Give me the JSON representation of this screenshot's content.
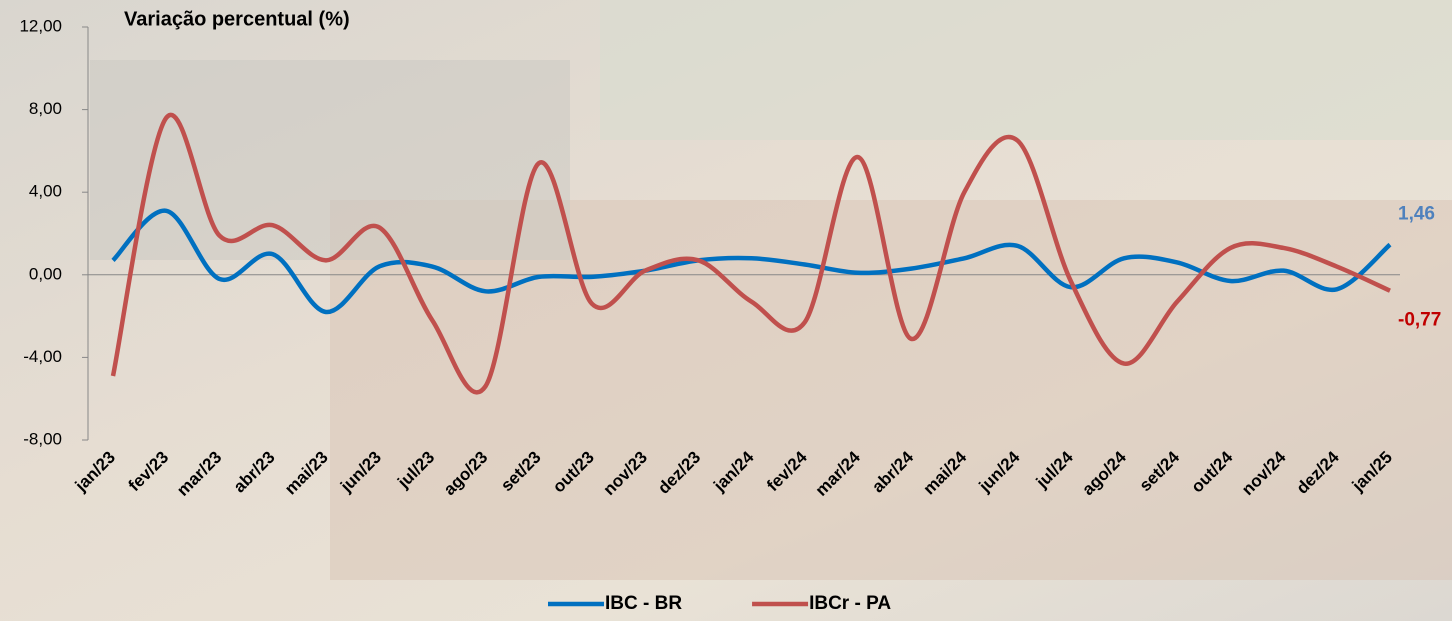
{
  "chart_data": {
    "type": "line",
    "title": "Variação percentual (%)",
    "categories": [
      "jan/23",
      "fev/23",
      "mar/23",
      "abr/23",
      "mai/23",
      "jun/23",
      "jul/23",
      "ago/23",
      "set/23",
      "out/23",
      "nov/23",
      "dez/23",
      "jan/24",
      "fev/24",
      "mar/24",
      "abr/24",
      "mai/24",
      "jun/24",
      "jul/24",
      "ago/24",
      "set/24",
      "out/24",
      "nov/24",
      "dez/24",
      "jan/25"
    ],
    "series": [
      {
        "name": "IBC - BR",
        "color": "#0070c0",
        "values": [
          0.7,
          3.1,
          -0.2,
          1.0,
          -1.8,
          0.4,
          0.4,
          -0.8,
          -0.1,
          -0.1,
          0.2,
          0.7,
          0.8,
          0.5,
          0.1,
          0.3,
          0.8,
          1.4,
          -0.6,
          0.8,
          0.6,
          -0.3,
          0.2,
          -0.7,
          1.46
        ],
        "value_labels": [
          null,
          null,
          null,
          null,
          null,
          null,
          null,
          null,
          null,
          null,
          null,
          null,
          null,
          null,
          null,
          null,
          null,
          null,
          null,
          null,
          null,
          null,
          null,
          null,
          "1,46"
        ],
        "label_color": "#4f81bd"
      },
      {
        "name": "IBCr - PA",
        "color": "#c0504d",
        "values": [
          -4.9,
          7.6,
          1.9,
          2.4,
          0.7,
          2.3,
          -2.2,
          -5.4,
          5.4,
          -1.4,
          0.2,
          0.7,
          -1.3,
          -2.3,
          5.7,
          -3.1,
          4.0,
          6.5,
          -0.3,
          -4.3,
          -1.3,
          1.3,
          1.3,
          0.4,
          -0.77
        ],
        "value_labels": [
          null,
          null,
          null,
          null,
          null,
          null,
          null,
          null,
          null,
          null,
          null,
          null,
          null,
          null,
          null,
          null,
          null,
          null,
          null,
          null,
          null,
          null,
          null,
          null,
          "-0,77"
        ],
        "label_color": "#c00000"
      }
    ],
    "ylim": [
      -8,
      12
    ],
    "yticks": [
      {
        "value": -8,
        "label": "-8,00"
      },
      {
        "value": -4,
        "label": "-4,00"
      },
      {
        "value": 0,
        "label": "0,00"
      },
      {
        "value": 4,
        "label": "4,00"
      },
      {
        "value": 8,
        "label": "8,00"
      },
      {
        "value": 12,
        "label": "12,00"
      }
    ],
    "smooth": true,
    "legend": "bottom"
  }
}
